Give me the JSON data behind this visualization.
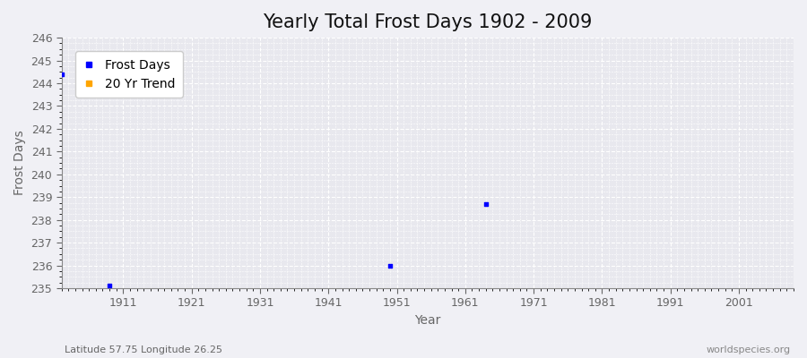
{
  "title": "Yearly Total Frost Days 1902 - 2009",
  "xlabel": "Year",
  "ylabel": "Frost Days",
  "subtitle_left": "Latitude 57.75 Longitude 26.25",
  "subtitle_right": "worldspecies.org",
  "ylim": [
    235,
    246
  ],
  "xlim": [
    1902,
    2009
  ],
  "yticks": [
    235,
    236,
    237,
    238,
    239,
    240,
    241,
    242,
    243,
    244,
    245,
    246
  ],
  "xticks": [
    1911,
    1921,
    1931,
    1941,
    1951,
    1961,
    1971,
    1981,
    1991,
    2001
  ],
  "frost_days": [
    [
      1902,
      244.4
    ],
    [
      1909,
      235.1
    ],
    [
      1950,
      236.0
    ],
    [
      1964,
      238.7
    ]
  ],
  "dot_color": "#0000ff",
  "trend_color": "#ffa500",
  "plot_bg_color": "#e8e8ee",
  "figure_bg_color": "#f0f0f5",
  "grid_color": "#ffffff",
  "major_grid_color": "#ccccdd",
  "spine_color": "#888888",
  "tick_color": "#666666",
  "title_fontsize": 15,
  "label_fontsize": 10,
  "tick_fontsize": 9,
  "subtitle_fontsize": 8
}
